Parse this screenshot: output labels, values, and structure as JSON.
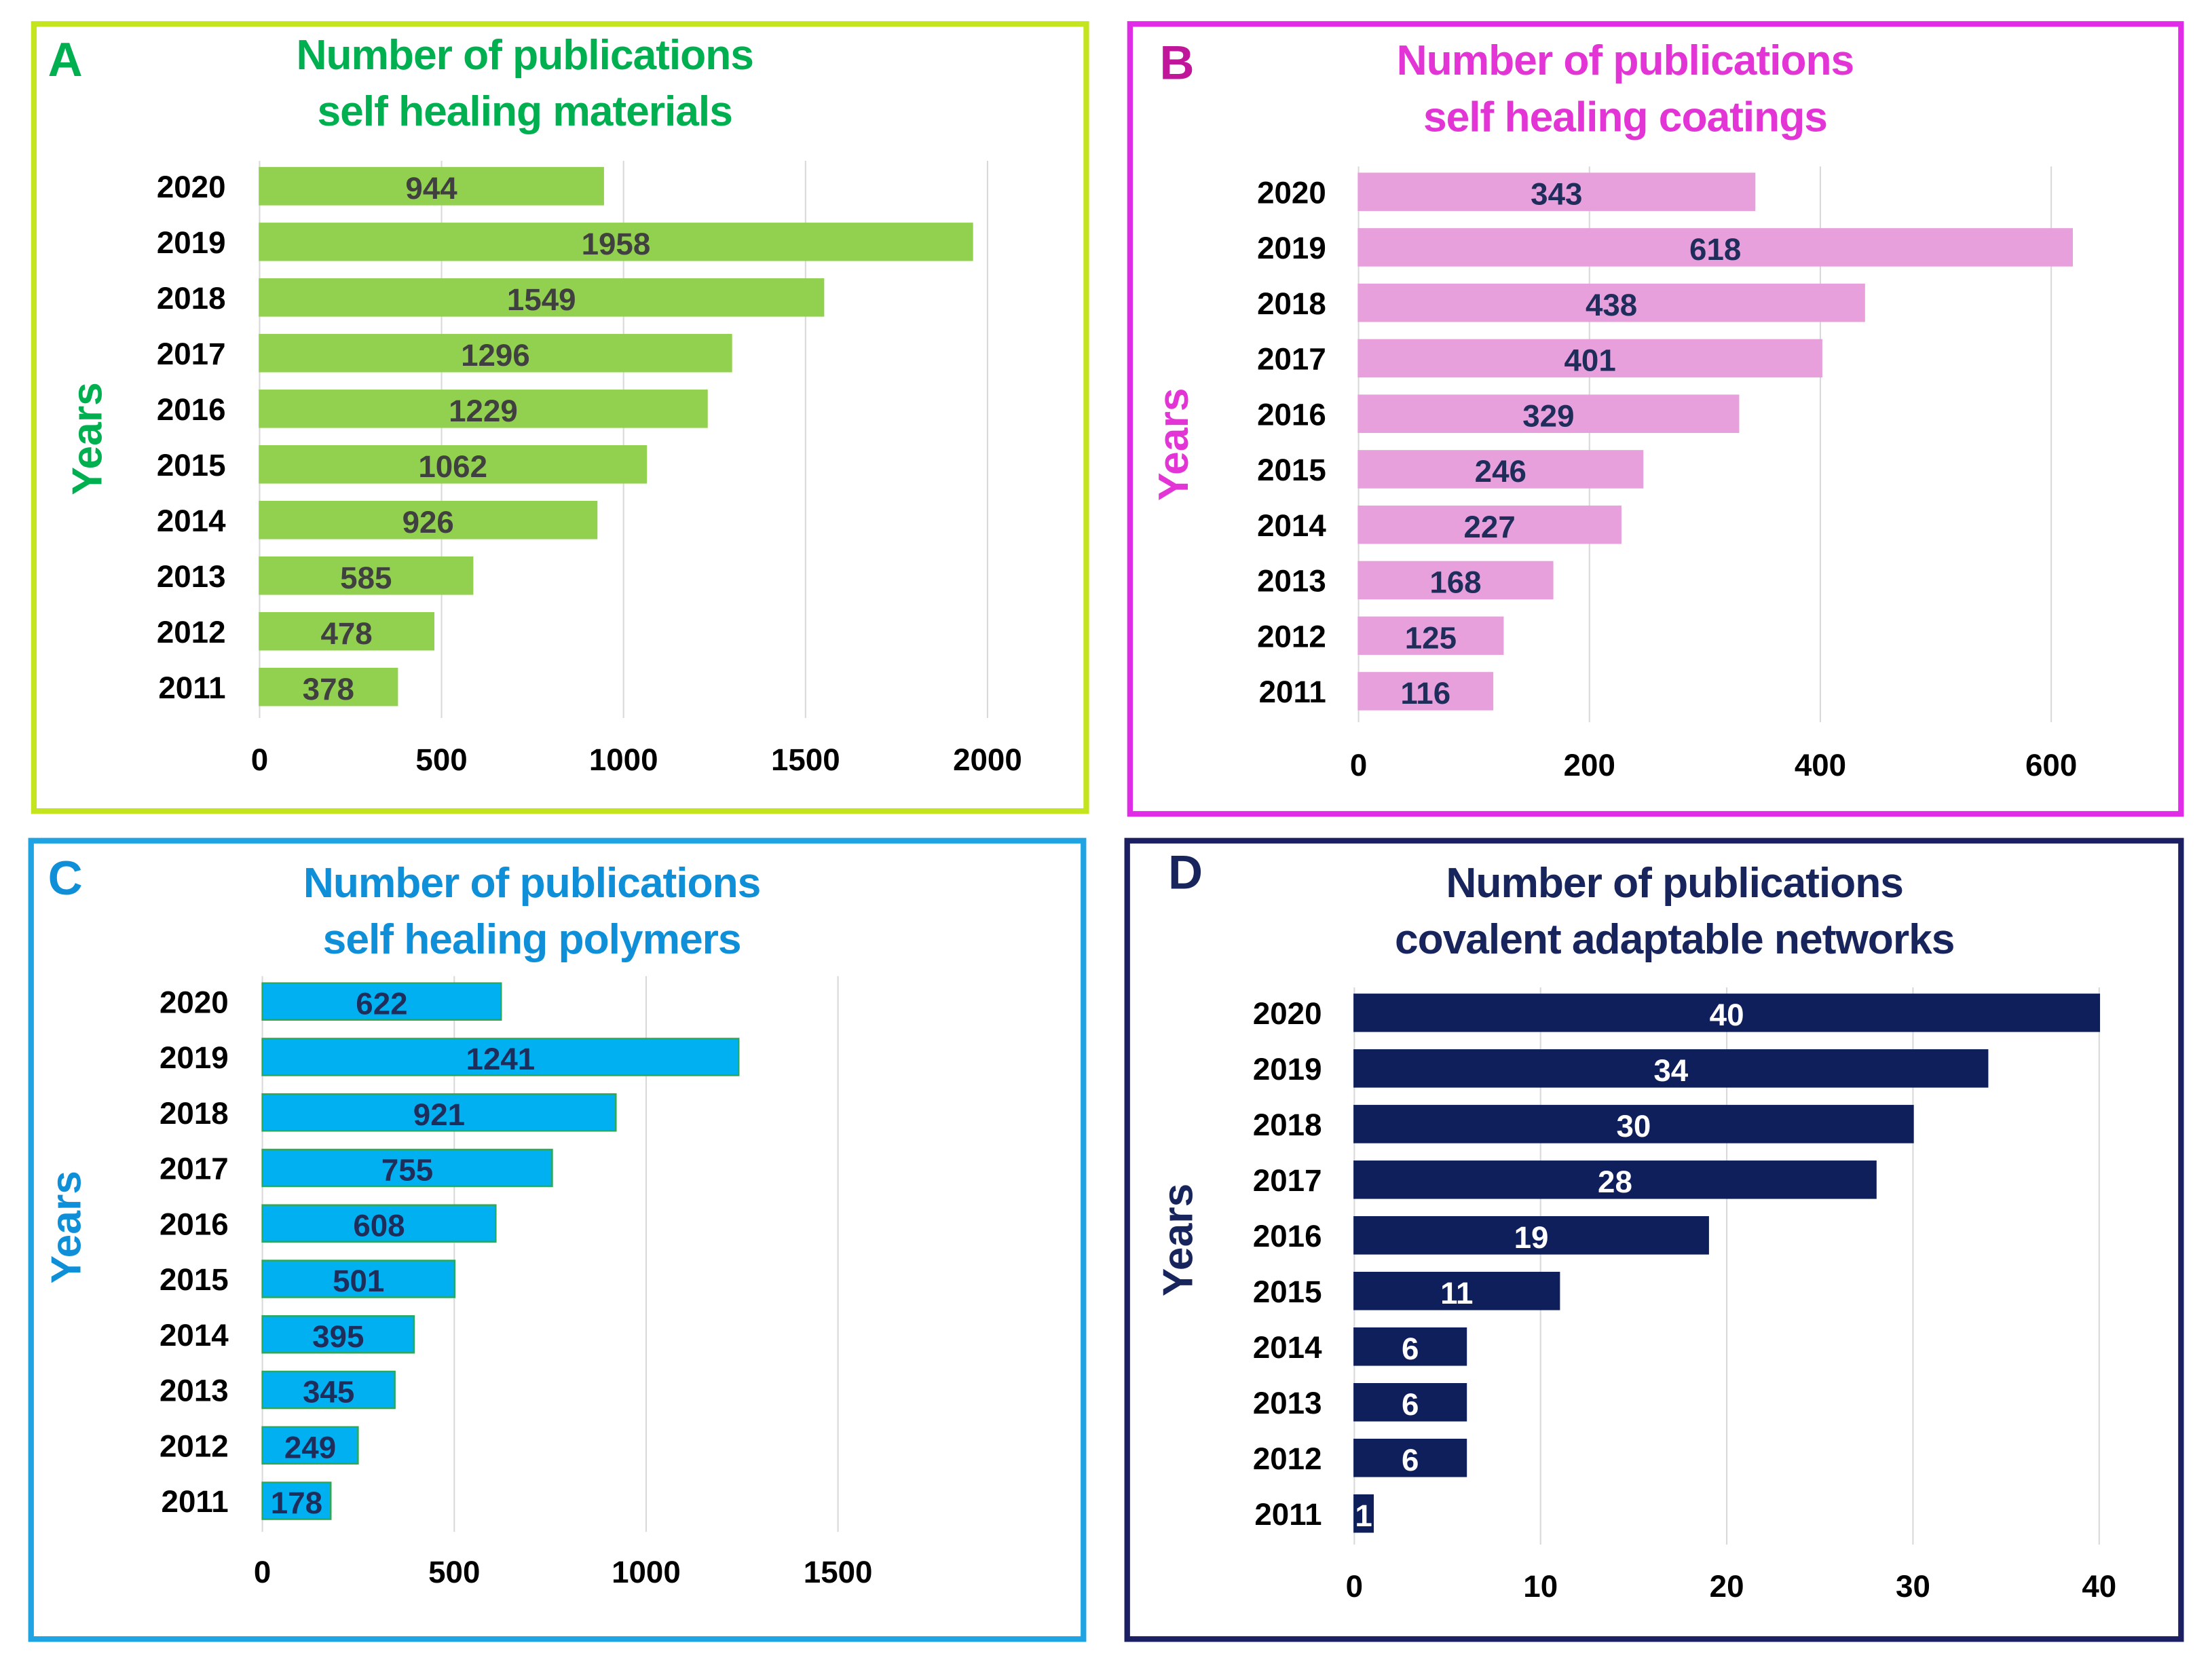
{
  "chart_data": [
    {
      "id": "A",
      "type": "bar",
      "orientation": "horizontal",
      "panel_letter": "A",
      "title": [
        "Number of publications",
        "self healing materials"
      ],
      "xlabel": "",
      "ylabel": "Years",
      "categories": [
        "2020",
        "2019",
        "2018",
        "2017",
        "2016",
        "2015",
        "2014",
        "2013",
        "2012",
        "2011"
      ],
      "values": [
        944,
        1958,
        1549,
        1296,
        1229,
        1062,
        926,
        585,
        478,
        378
      ],
      "xlim": [
        0,
        2000
      ],
      "xticks": [
        0,
        500,
        1000,
        1500,
        2000
      ],
      "grid": true,
      "colors": {
        "border": "#c3e41f",
        "title": "#00b050",
        "bar": "#92d050",
        "bar_edge": "#92d050",
        "label": "#404040"
      }
    },
    {
      "id": "B",
      "type": "bar",
      "orientation": "horizontal",
      "panel_letter": "B",
      "title": [
        "Number of publications",
        "self healing coatings"
      ],
      "xlabel": "",
      "ylabel": "Years",
      "categories": [
        "2020",
        "2019",
        "2018",
        "2017",
        "2016",
        "2015",
        "2014",
        "2013",
        "2012",
        "2011"
      ],
      "values": [
        343,
        618,
        438,
        401,
        329,
        246,
        227,
        168,
        125,
        116
      ],
      "xlim": [
        0,
        600
      ],
      "xticks": [
        0,
        200,
        400,
        600
      ],
      "grid": true,
      "colors": {
        "border": "#e02ce6",
        "title": "#e334d6",
        "bar": "#e7a0dc",
        "bar_edge": "#e7a0dc",
        "label": "#1f2d5a",
        "letter": "#c0169a"
      }
    },
    {
      "id": "C",
      "type": "bar",
      "orientation": "horizontal",
      "panel_letter": "C",
      "title": [
        "Number of publications",
        "self healing polymers"
      ],
      "xlabel": "",
      "ylabel": "Years",
      "categories": [
        "2020",
        "2019",
        "2018",
        "2017",
        "2016",
        "2015",
        "2014",
        "2013",
        "2012",
        "2011"
      ],
      "values": [
        622,
        1241,
        921,
        755,
        608,
        501,
        395,
        345,
        249,
        178
      ],
      "xlim": [
        0,
        1500
      ],
      "xticks": [
        0,
        500,
        1000,
        1500
      ],
      "grid": true,
      "colors": {
        "border": "#1fa3e3",
        "title": "#0f8fd8",
        "bar": "#00b0f0",
        "bar_edge": "#2ca85a",
        "label": "#1f2d5a"
      }
    },
    {
      "id": "D",
      "type": "bar",
      "orientation": "horizontal",
      "panel_letter": "D",
      "title": [
        "Number of publications",
        "covalent adaptable networks"
      ],
      "xlabel": "",
      "ylabel": "Years",
      "categories": [
        "2020",
        "2019",
        "2018",
        "2017",
        "2016",
        "2015",
        "2014",
        "2013",
        "2012",
        "2011"
      ],
      "values": [
        40,
        34,
        30,
        28,
        19,
        11,
        6,
        6,
        6,
        1
      ],
      "xlim": [
        0,
        40
      ],
      "xticks": [
        0,
        10,
        20,
        30,
        40
      ],
      "grid": true,
      "colors": {
        "border": "#1c1f62",
        "title": "#17255c",
        "bar": "#0e1f5b",
        "bar_edge": "#0e1f5b",
        "label": "#ffffff"
      }
    }
  ]
}
